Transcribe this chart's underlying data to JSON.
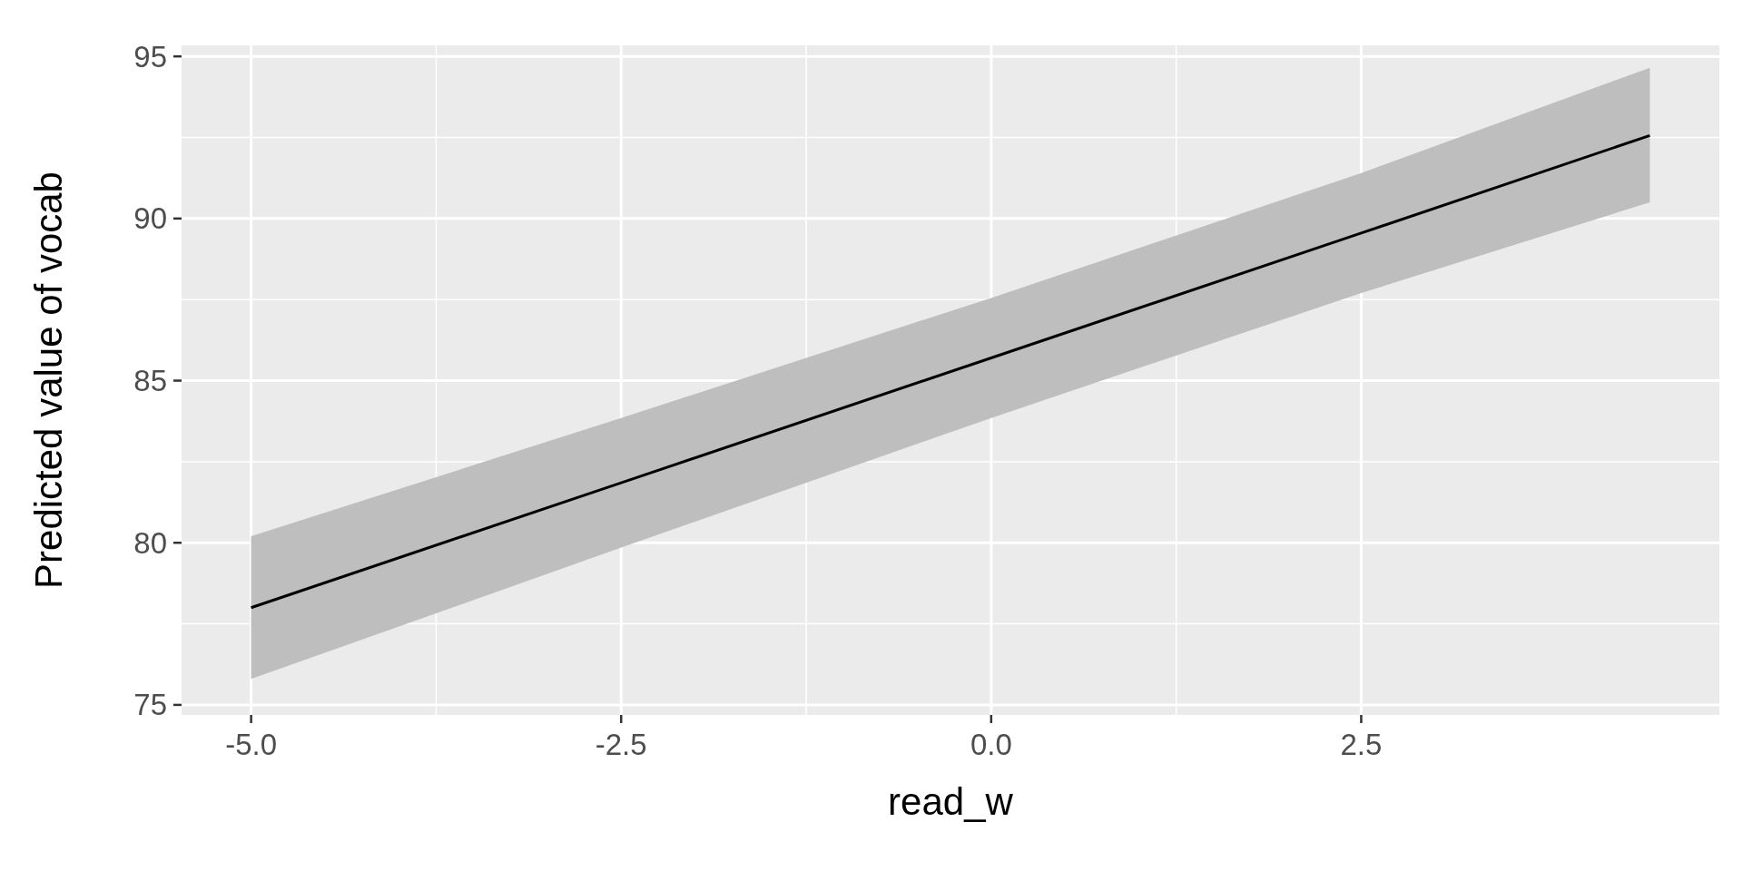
{
  "chart_data": {
    "type": "line",
    "xlabel": "read_w",
    "ylabel": "Predicted value of vocab",
    "xlim": [
      -5.47,
      4.92
    ],
    "ylim": [
      74.69,
      95.34
    ],
    "xticks": [
      {
        "value": -5,
        "label": "-5.0"
      },
      {
        "value": -2.5,
        "label": "-2.5"
      },
      {
        "value": 0,
        "label": "0.0"
      },
      {
        "value": 2.5,
        "label": "2.5"
      }
    ],
    "yticks": [
      75,
      80,
      85,
      90,
      95
    ],
    "grid": true,
    "series": [
      {
        "color": "#000000",
        "x": [
          -5,
          -2.5,
          0,
          2.5,
          4.45
        ],
        "values": [
          78.0,
          81.85,
          85.7,
          89.55,
          92.56
        ],
        "lower": [
          75.8,
          79.85,
          83.85,
          87.7,
          90.5
        ],
        "upper": [
          80.2,
          83.85,
          87.55,
          91.4,
          94.65
        ]
      }
    ]
  }
}
